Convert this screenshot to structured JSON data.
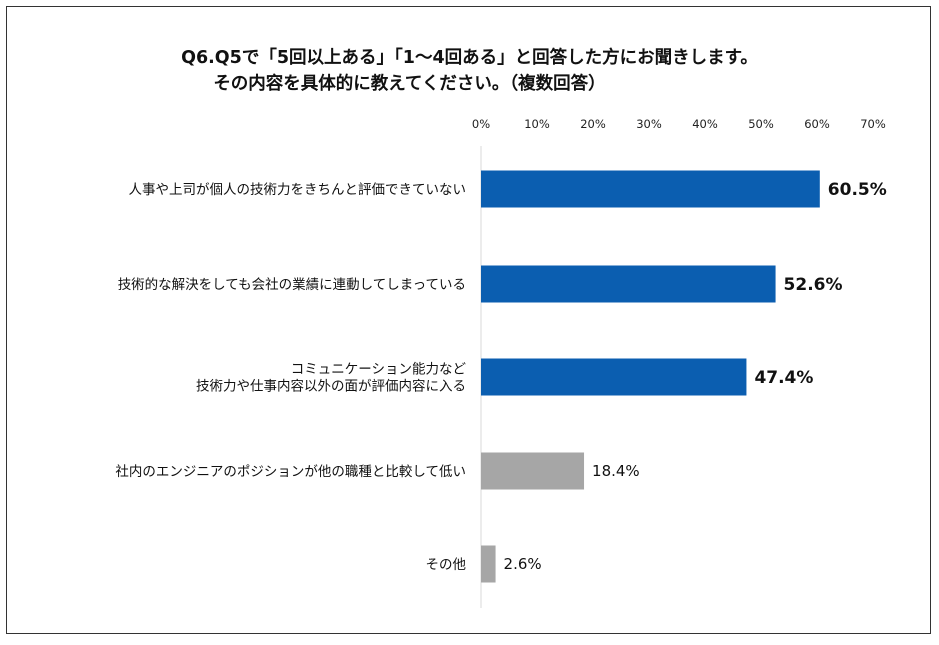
{
  "title_line1": "Q6.Q5で「5回以上ある」「1～4回ある」と回答した方にお聞きします。",
  "title_line2": "その内容を具体的に教えてください。（複数回答）",
  "chart_data": {
    "type": "bar",
    "orientation": "horizontal",
    "categories": [
      [
        "人事や上司が個人の技術力をきちんと評価できていない"
      ],
      [
        "技術的な解決をしても会社の業績に連動してしまっている"
      ],
      [
        "コミュニケーション能力など",
        "技術力や仕事内容以外の面が評価内容に入る"
      ],
      [
        "社内のエンジニアのポジションが他の職種と比較して低い"
      ],
      [
        "その他"
      ]
    ],
    "values": [
      60.5,
      52.6,
      47.4,
      18.4,
      2.6
    ],
    "value_labels": [
      "60.5%",
      "52.6%",
      "47.4%",
      "18.4%",
      "2.6%"
    ],
    "bar_colors": [
      "#0b5eb0",
      "#0b5eb0",
      "#0b5eb0",
      "#a6a6a6",
      "#a6a6a6"
    ],
    "highlight": [
      true,
      true,
      true,
      false,
      false
    ],
    "xlim": [
      0,
      70
    ],
    "xticks": [
      "0%",
      "10%",
      "20%",
      "30%",
      "40%",
      "50%",
      "60%",
      "70%"
    ],
    "axis_position": "top",
    "grid": false,
    "legend": "none"
  }
}
